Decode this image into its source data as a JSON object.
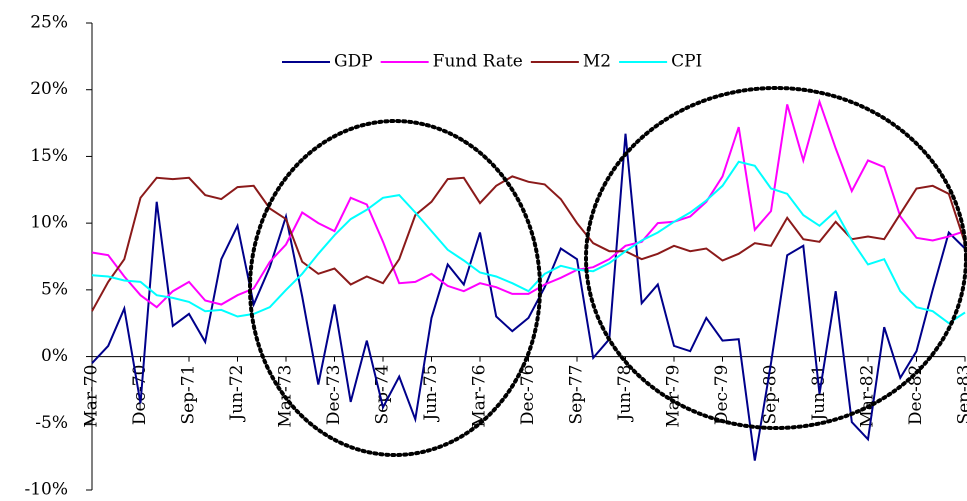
{
  "chart_data": {
    "type": "line",
    "categories": [
      "Mar-70",
      null,
      null,
      "Dec-70",
      null,
      null,
      "Sep-71",
      null,
      null,
      "Jun-72",
      null,
      null,
      "Mar-73",
      null,
      null,
      "Dec-73",
      null,
      null,
      "Sep-74",
      null,
      null,
      "Jun-75",
      null,
      null,
      "Mar-76",
      null,
      null,
      "Dec-76",
      null,
      null,
      "Sep-77",
      null,
      null,
      "Jun-78",
      null,
      null,
      "Mar-79",
      null,
      null,
      "Dec-79",
      null,
      null,
      "Sep-80",
      null,
      null,
      "Jun-81",
      null,
      null,
      "Mar-82",
      null,
      null,
      "Dec-82",
      null,
      null,
      "Sep-83"
    ],
    "series": [
      {
        "name": "GDP",
        "color": "#00008b",
        "values": [
          -0.5,
          0.8,
          3.6,
          -3.5,
          11.6,
          2.3,
          3.2,
          1.1,
          7.3,
          9.8,
          3.9,
          6.7,
          10.5,
          4.5,
          -2.1,
          3.9,
          -3.4,
          1.2,
          -3.8,
          -1.5,
          -4.7,
          2.9,
          6.9,
          5.4,
          9.3,
          3.0,
          1.9,
          2.9,
          5.2,
          8.1,
          7.3,
          -0.1,
          1.3,
          16.7,
          4.0,
          5.4,
          0.8,
          0.4,
          2.9,
          1.2,
          1.3,
          -7.8,
          -0.5,
          7.6,
          8.3,
          -2.8,
          4.9,
          -4.9,
          -6.2,
          2.2,
          -1.6,
          0.4,
          5.0,
          9.3,
          8.1
        ]
      },
      {
        "name": "Fund Rate",
        "color": "#ff00ff",
        "values": [
          7.8,
          7.6,
          6.0,
          4.6,
          3.7,
          4.9,
          5.6,
          4.2,
          3.9,
          4.6,
          5.1,
          7.1,
          8.4,
          10.8,
          10.0,
          9.4,
          11.9,
          11.4,
          8.6,
          5.5,
          5.6,
          6.2,
          5.3,
          4.9,
          5.5,
          5.2,
          4.7,
          4.7,
          5.4,
          5.9,
          6.5,
          6.7,
          7.3,
          8.3,
          8.6,
          10.0,
          10.1,
          10.5,
          11.6,
          13.5,
          17.2,
          9.5,
          10.9,
          18.9,
          14.7,
          19.1,
          15.6,
          12.4,
          14.7,
          14.2,
          10.5,
          8.9,
          8.7,
          9.0,
          9.4
        ]
      },
      {
        "name": "M2",
        "color": "#8b1a1a",
        "values": [
          3.4,
          5.6,
          7.3,
          11.9,
          13.4,
          13.3,
          13.4,
          12.1,
          11.8,
          12.7,
          12.8,
          11.1,
          10.3,
          7.1,
          6.2,
          6.6,
          5.4,
          6.0,
          5.5,
          7.3,
          10.6,
          11.6,
          13.3,
          13.4,
          11.5,
          12.8,
          13.5,
          13.1,
          12.9,
          11.8,
          10.0,
          8.5,
          7.9,
          7.9,
          7.3,
          7.7,
          8.3,
          7.9,
          8.1,
          7.2,
          7.7,
          8.5,
          8.3,
          10.4,
          8.8,
          8.6,
          10.1,
          8.8,
          9.0,
          8.8,
          10.7,
          12.6,
          12.8,
          12.2,
          8.5
        ]
      },
      {
        "name": "CPI",
        "color": "#00ffff",
        "values": [
          6.1,
          6.0,
          5.7,
          5.6,
          4.6,
          4.4,
          4.1,
          3.4,
          3.5,
          3.0,
          3.2,
          3.7,
          5.0,
          6.2,
          7.7,
          9.1,
          10.3,
          11.0,
          11.9,
          12.1,
          10.8,
          9.4,
          8.0,
          7.2,
          6.3,
          6.0,
          5.5,
          4.9,
          6.2,
          6.8,
          6.5,
          6.4,
          7.0,
          7.9,
          8.7,
          9.3,
          10.1,
          10.8,
          11.7,
          12.8,
          14.6,
          14.3,
          12.6,
          12.2,
          10.6,
          9.8,
          10.9,
          8.7,
          6.9,
          7.3,
          4.9,
          3.7,
          3.4,
          2.5,
          3.3
        ]
      }
    ],
    "ylim": [
      -10,
      25
    ],
    "yticks": [
      {
        "value": -10,
        "label": "-10%"
      },
      {
        "value": -5,
        "label": "-5%"
      },
      {
        "value": 0,
        "label": "0%"
      },
      {
        "value": 5,
        "label": "5%"
      },
      {
        "value": 10,
        "label": "10%"
      },
      {
        "value": 15,
        "label": "15%"
      },
      {
        "value": 20,
        "label": "20%"
      },
      {
        "value": 25,
        "label": "25%"
      }
    ],
    "legend": "top"
  }
}
